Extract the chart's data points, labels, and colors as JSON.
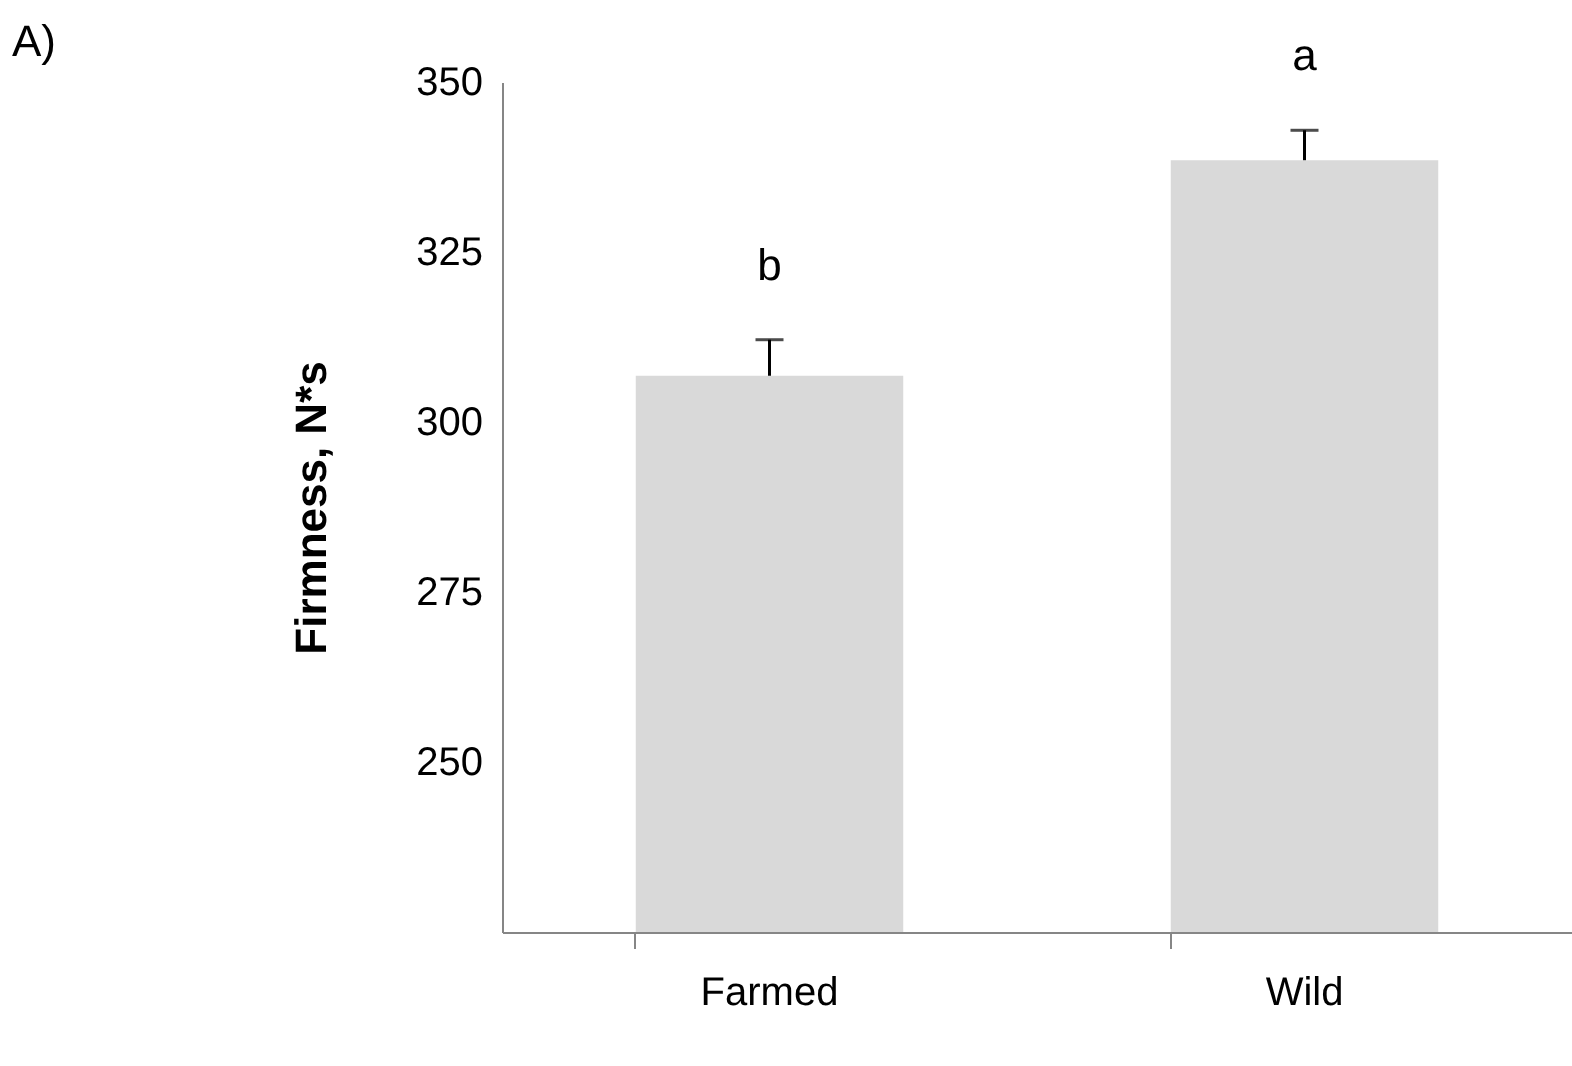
{
  "chart_data": {
    "type": "bar",
    "ylabel": "Firmness, N*s",
    "categories": [
      "Farmed",
      "Wild"
    ],
    "values": [
      306.8,
      338.5
    ],
    "errors": [
      [
        306.8,
        312.1
      ],
      [
        338.5,
        342.9
      ]
    ],
    "color": "#d9d9d9",
    "ylim": [
      225,
      350
    ],
    "yticks": [
      250,
      275,
      300,
      325,
      350
    ],
    "grid": false,
    "annotations": [
      "A)",
      "b",
      "a"
    ]
  }
}
